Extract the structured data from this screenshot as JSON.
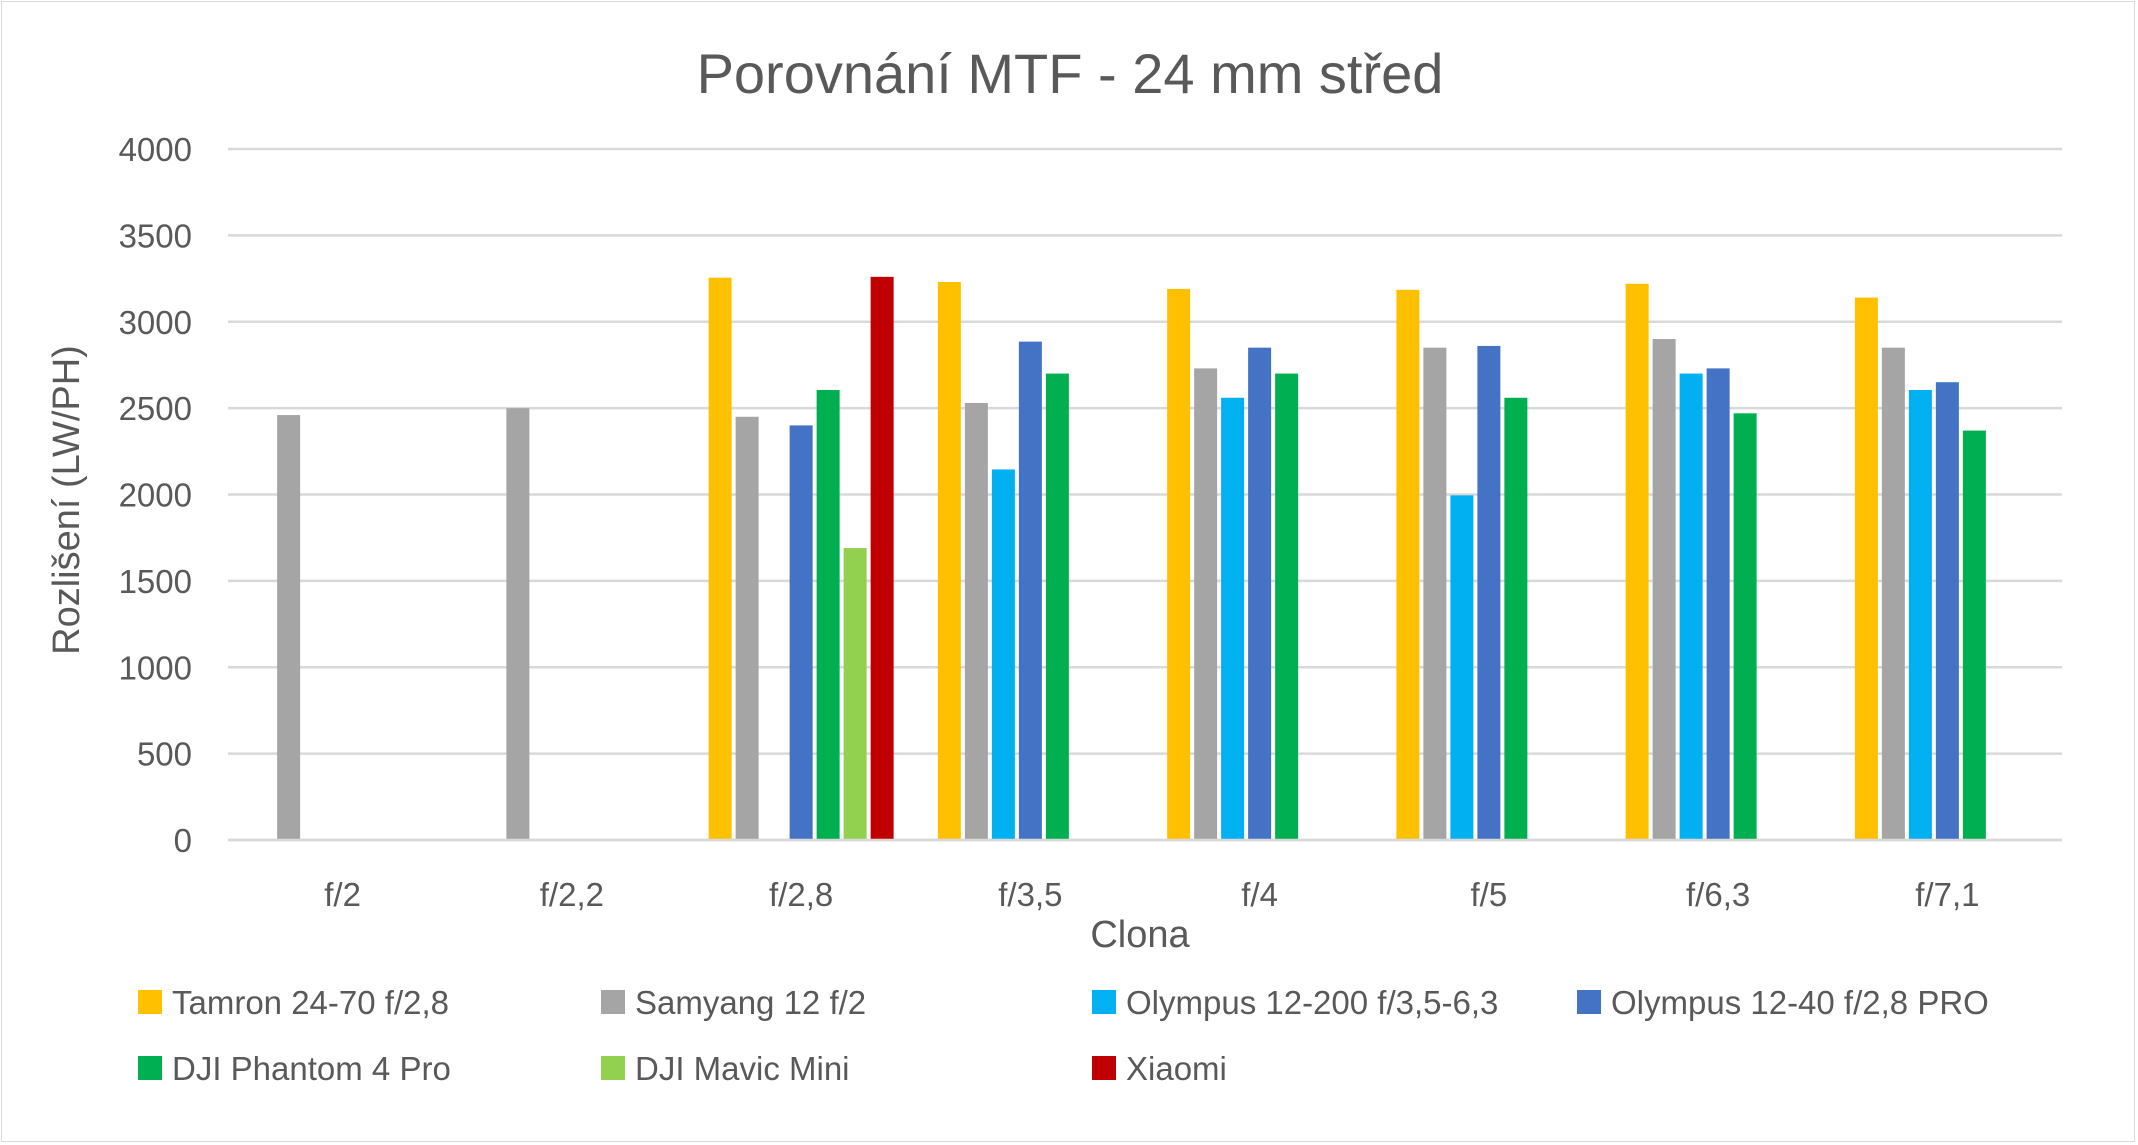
{
  "chart_data": {
    "type": "bar",
    "title": "Porovnání MTF - 24 mm střed",
    "xlabel": "Clona",
    "ylabel": "Rozlišení (LW/PH)",
    "ylim": [
      0,
      4000
    ],
    "yticks": [
      0,
      500,
      1000,
      1500,
      2000,
      2500,
      3000,
      3500,
      4000
    ],
    "grid": true,
    "legend_position": "bottom",
    "categories": [
      "f/2",
      "f/2,2",
      "f/2,8",
      "f/3,5",
      "f/4",
      "f/5",
      "f/6,3",
      "f/7,1"
    ],
    "series": [
      {
        "name": "Tamron 24-70 f/2,8",
        "color": "#FFC000",
        "values": [
          null,
          null,
          3255,
          3230,
          3190,
          3185,
          3220,
          3140
        ]
      },
      {
        "name": "Samyang 12 f/2",
        "color": "#A5A5A5",
        "values": [
          2460,
          2500,
          2450,
          2530,
          2730,
          2850,
          2900,
          2850
        ]
      },
      {
        "name": "Olympus 12-200 f/3,5-6,3",
        "color": "#00B0F0",
        "values": [
          null,
          null,
          null,
          2145,
          2560,
          1995,
          2700,
          2605
        ]
      },
      {
        "name": "Olympus 12-40 f/2,8 PRO",
        "color": "#4472C4",
        "values": [
          null,
          null,
          2400,
          2885,
          2850,
          2860,
          2730,
          2650
        ]
      },
      {
        "name": "DJI Phantom 4 Pro",
        "color": "#00B050",
        "values": [
          null,
          null,
          2605,
          2700,
          2700,
          2560,
          2470,
          2370
        ]
      },
      {
        "name": "DJI Mavic Mini",
        "color": "#92D050",
        "values": [
          null,
          null,
          1690,
          null,
          null,
          null,
          null,
          null
        ]
      },
      {
        "name": "Xiaomi",
        "color": "#C00000",
        "values": [
          null,
          null,
          3260,
          null,
          null,
          null,
          null,
          null
        ]
      }
    ]
  }
}
